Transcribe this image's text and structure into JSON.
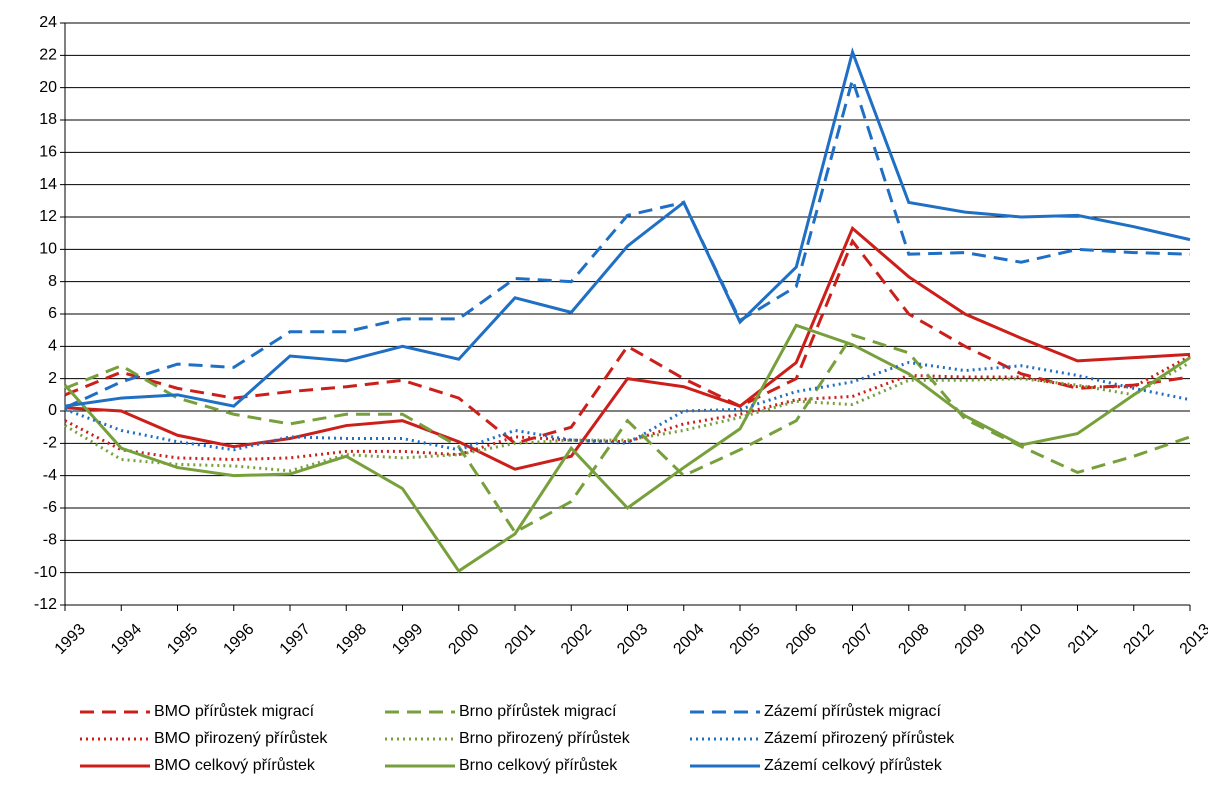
{
  "chart_data": {
    "type": "line",
    "categories": [
      "1993",
      "1994",
      "1995",
      "1996",
      "1997",
      "1998",
      "1999",
      "2000",
      "2001",
      "2002",
      "2003",
      "2004",
      "2005",
      "2006",
      "2007",
      "2008",
      "2009",
      "2010",
      "2011",
      "2012",
      "2013"
    ],
    "ylim": [
      -12,
      24
    ],
    "yticks": [
      -12,
      -10,
      -8,
      -6,
      -4,
      -2,
      0,
      2,
      4,
      6,
      8,
      10,
      12,
      14,
      16,
      18,
      20,
      22,
      24
    ],
    "grid": true,
    "series": [
      {
        "name": "BMO přírůstek migrací",
        "color": "#cc1f1a",
        "dash": "dashed",
        "values": [
          1.0,
          2.4,
          1.4,
          0.8,
          1.2,
          1.5,
          1.9,
          0.8,
          -2.0,
          -1.0,
          4.0,
          2.0,
          0.3,
          2.0,
          10.5,
          6.0,
          4.0,
          2.3,
          1.4,
          1.6,
          2.1
        ]
      },
      {
        "name": "BMO přirozený přírůstek",
        "color": "#cc1f1a",
        "dash": "dotted",
        "values": [
          -0.6,
          -2.4,
          -2.9,
          -3.0,
          -2.9,
          -2.5,
          -2.5,
          -2.7,
          -1.6,
          -1.8,
          -1.9,
          -0.8,
          -0.2,
          0.7,
          0.9,
          2.2,
          2.1,
          2.1,
          1.5,
          1.5,
          3.4
        ]
      },
      {
        "name": "BMO celkový přírůstek",
        "color": "#cc1f1a",
        "dash": "solid",
        "values": [
          0.2,
          0.0,
          -1.5,
          -2.2,
          -1.7,
          -0.9,
          -0.6,
          -1.9,
          -3.6,
          -2.8,
          2.0,
          1.5,
          0.3,
          3.0,
          11.3,
          8.3,
          6.0,
          4.5,
          3.1,
          3.3,
          3.5
        ]
      },
      {
        "name": "Brno přírůstek migrací",
        "color": "#77a03c",
        "dash": "dashed",
        "values": [
          1.4,
          2.8,
          0.8,
          -0.2,
          -0.8,
          -0.2,
          -0.2,
          -2.2,
          -7.5,
          -5.6,
          -0.6,
          -4.0,
          -2.4,
          -0.6,
          4.7,
          3.6,
          -0.5,
          -2.2,
          -3.8,
          -2.8,
          -1.6
        ]
      },
      {
        "name": "Brno přirozený přírůstek",
        "color": "#77a03c",
        "dash": "dotted",
        "values": [
          -0.9,
          -3.0,
          -3.3,
          -3.4,
          -3.7,
          -2.7,
          -2.9,
          -2.7,
          -2.0,
          -1.8,
          -1.8,
          -1.2,
          -0.4,
          0.6,
          0.4,
          1.9,
          1.9,
          2.0,
          1.6,
          1.0,
          3.0
        ]
      },
      {
        "name": "Brno celkový přírůstek",
        "color": "#77a03c",
        "dash": "solid",
        "values": [
          1.6,
          -2.3,
          -3.5,
          -4.0,
          -3.9,
          -2.8,
          -4.8,
          -9.9,
          -7.6,
          -2.3,
          -6.0,
          -3.5,
          -1.1,
          5.3,
          4.1,
          2.3,
          -0.3,
          -2.1,
          -1.4,
          1.0,
          3.3
        ]
      },
      {
        "name": "Zázemí přírůstek migrací",
        "color": "#1f6fc5",
        "dash": "dashed",
        "values": [
          0.2,
          1.8,
          2.9,
          2.7,
          4.9,
          4.9,
          5.7,
          5.7,
          8.2,
          8.0,
          12.1,
          12.9,
          5.6,
          7.7,
          20.5,
          9.7,
          9.8,
          9.2,
          10.0,
          9.8,
          9.7
        ]
      },
      {
        "name": "Zázemí přirozený přírůstek",
        "color": "#1f6fc5",
        "dash": "dotted",
        "values": [
          0.1,
          -1.2,
          -1.9,
          -2.4,
          -1.6,
          -1.7,
          -1.7,
          -2.4,
          -1.2,
          -1.8,
          -2.0,
          0.0,
          0.1,
          1.2,
          1.8,
          3.0,
          2.5,
          2.8,
          2.2,
          1.4,
          0.7
        ]
      },
      {
        "name": "Zázemí celkový přírůstek",
        "color": "#1f6fc5",
        "dash": "solid",
        "values": [
          0.3,
          0.8,
          1.0,
          0.3,
          3.4,
          3.1,
          4.0,
          3.2,
          7.0,
          6.1,
          10.2,
          12.9,
          5.5,
          8.9,
          22.2,
          12.9,
          12.3,
          12.0,
          12.1,
          11.4,
          10.6
        ]
      }
    ]
  }
}
